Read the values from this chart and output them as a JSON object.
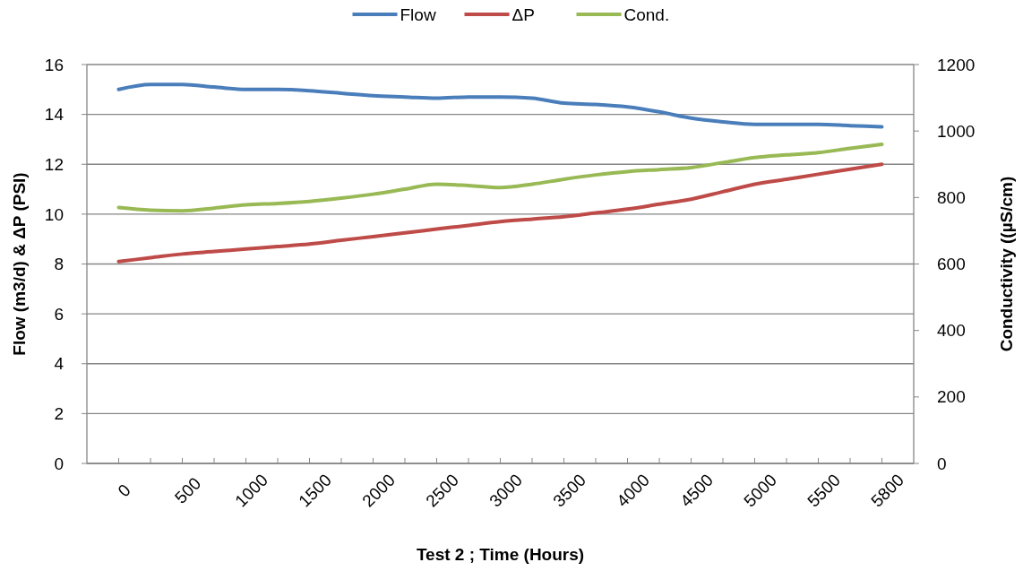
{
  "chart_data": {
    "type": "line",
    "xlabel": "Test 2 ; Time (Hours)",
    "ylabel": "Flow (m3/d) & ΔP (PSI)",
    "y2label": "Conductivity ((µS/cm)",
    "categories": [
      "0",
      null,
      "500",
      null,
      "1000",
      null,
      "1500",
      null,
      "2000",
      null,
      "2500",
      null,
      "3000",
      null,
      "3500",
      null,
      "4000",
      null,
      "4500",
      null,
      "5000",
      null,
      "5500",
      null,
      "5800"
    ],
    "series": [
      {
        "name": "Flow",
        "color": "#4a7ebb",
        "values": [
          15.0,
          15.2,
          15.2,
          15.1,
          15.0,
          15.0,
          14.95,
          14.85,
          14.75,
          14.7,
          14.65,
          14.7,
          14.7,
          14.65,
          14.45,
          14.4,
          14.3,
          14.1,
          13.85,
          13.7,
          13.6,
          13.6,
          13.6,
          13.55,
          13.5
        ]
      },
      {
        "name": "ΔP",
        "color": "#be4b48",
        "values": [
          8.1,
          8.25,
          8.4,
          8.5,
          8.6,
          8.7,
          8.8,
          8.95,
          9.1,
          9.25,
          9.4,
          9.55,
          9.7,
          9.8,
          9.9,
          10.05,
          10.2,
          10.4,
          10.6,
          10.9,
          11.2,
          11.4,
          11.6,
          11.8,
          12.0
        ]
      },
      {
        "name": "Cond.",
        "color": "#98b954",
        "axis": "y2",
        "values": [
          770,
          762,
          760,
          768,
          778,
          782,
          788,
          798,
          810,
          825,
          840,
          836,
          830,
          840,
          855,
          868,
          878,
          884,
          890,
          905,
          920,
          928,
          935,
          948,
          960
        ]
      }
    ],
    "ylim": [
      0,
      16
    ],
    "yticks": [
      0,
      2,
      4,
      6,
      8,
      10,
      12,
      14,
      16
    ],
    "y2lim": [
      0,
      1200
    ],
    "y2ticks": [
      0,
      200,
      400,
      600,
      800,
      1000,
      1200
    ],
    "grid": "y",
    "legend": "top",
    "marker": "none",
    "line_style": "solid"
  }
}
